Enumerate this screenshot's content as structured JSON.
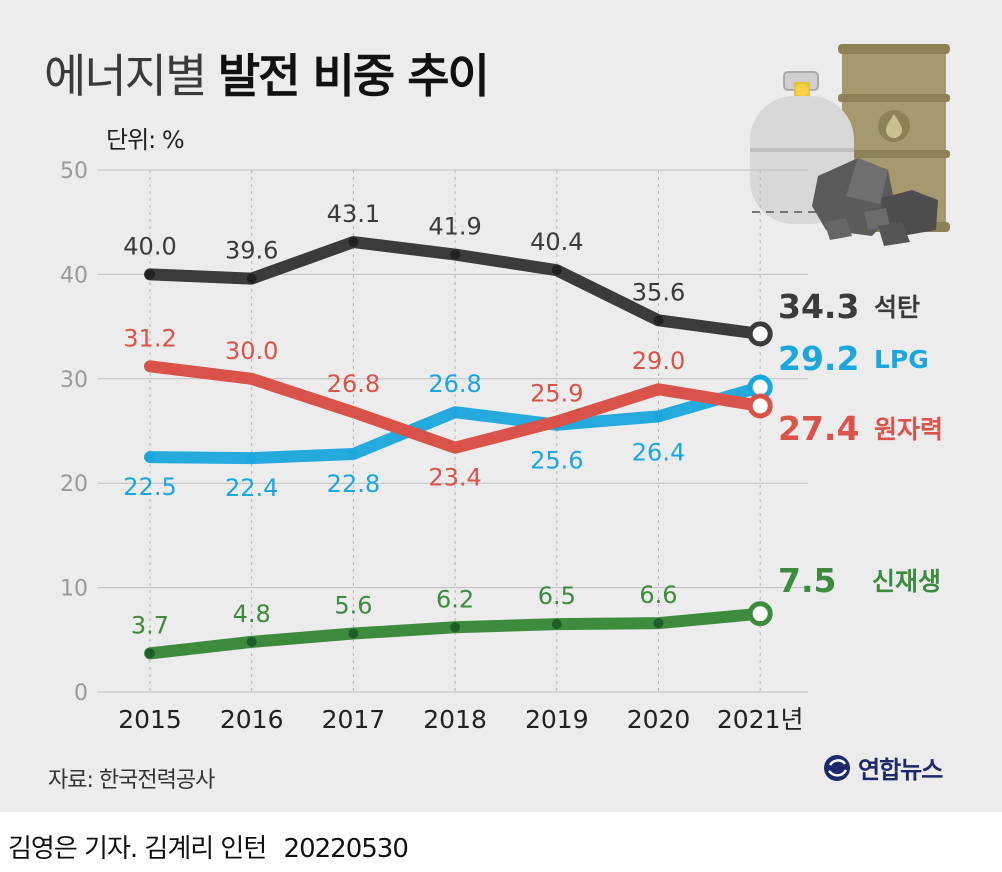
{
  "header": {
    "title_light": "에너지별",
    "title_bold": "발전 비중 추이",
    "unit": "단위: %"
  },
  "footer": {
    "source": "자료: 한국전력공사",
    "brand": "연합뉴스",
    "credit": "김영은 기자. 김계리 인턴",
    "date": "20220530"
  },
  "colors": {
    "coal": "#3b3b3b",
    "lpg": "#1aa7dd",
    "nuclear": "#d9534a",
    "renewable": "#3d8b3d",
    "grid": "#bfbfbf",
    "axis_text": "#9a9a9a"
  },
  "icons": [
    "gas-cylinder-icon",
    "oil-barrel-icon",
    "coal-pile-icon"
  ],
  "chart_data": {
    "type": "line",
    "categories": [
      "2015",
      "2016",
      "2017",
      "2018",
      "2019",
      "2020",
      "2021년"
    ],
    "ylim": [
      0,
      50
    ],
    "yticks": [
      "0",
      "10",
      "20",
      "30",
      "40",
      "50"
    ],
    "grid": "horizontal solid, vertical dashed",
    "series": [
      {
        "key": "coal",
        "name": "석탄",
        "values": [
          40.0,
          39.6,
          43.1,
          41.9,
          40.4,
          35.6,
          34.3
        ],
        "labels": [
          "40.0",
          "39.6",
          "43.1",
          "41.9",
          "40.4",
          "35.6",
          "34.3"
        ]
      },
      {
        "key": "lpg",
        "name": "LPG",
        "values": [
          22.5,
          22.4,
          22.8,
          26.8,
          25.6,
          26.4,
          29.2
        ],
        "labels": [
          "22.5",
          "22.4",
          "22.8",
          "26.8",
          "25.6",
          "26.4",
          "29.2"
        ]
      },
      {
        "key": "nuclear",
        "name": "원자력",
        "values": [
          31.2,
          30.0,
          26.8,
          23.4,
          25.9,
          29.0,
          27.4
        ],
        "labels": [
          "31.2",
          "30.0",
          "26.8",
          "23.4",
          "25.9",
          "29.0",
          "27.4"
        ]
      },
      {
        "key": "renewable",
        "name": "신재생",
        "values": [
          3.7,
          4.8,
          5.6,
          6.2,
          6.5,
          6.6,
          7.5
        ],
        "labels": [
          "3.7",
          "4.8",
          "5.6",
          "6.2",
          "6.5",
          "6.6",
          "7.5"
        ]
      }
    ]
  }
}
